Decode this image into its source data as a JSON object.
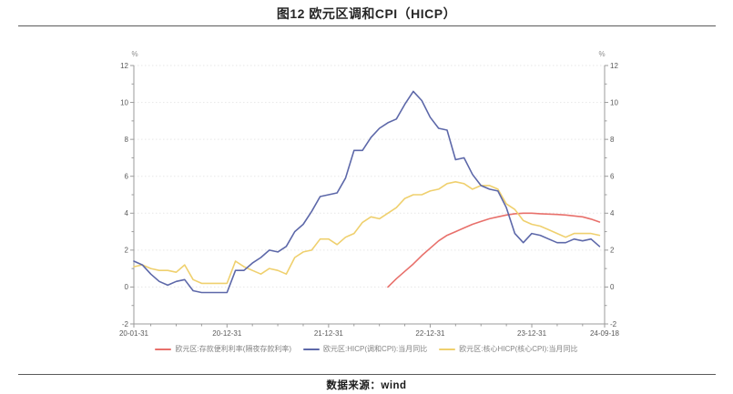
{
  "page": {
    "title": "图12 欧元区调和CPI（HICP）",
    "source": "数据来源：wind"
  },
  "chart_data": {
    "type": "line",
    "title": "图12 欧元区调和CPI（HICP）",
    "unit_label": "%",
    "x_start": "2020-01-31",
    "x_end": "2024-09-18",
    "x_tick_labels": [
      "20-01-31",
      "20-12-31",
      "21-12-31",
      "22-12-31",
      "23-12-31",
      "24-09-18"
    ],
    "x_tick_months": [
      0,
      11,
      23,
      35,
      47,
      55.6
    ],
    "x_minor_tick_months": [
      2,
      5,
      8,
      14,
      17,
      20,
      26,
      29,
      32,
      38,
      41,
      44,
      50,
      53
    ],
    "x_total_months": 55.6,
    "ylim": [
      -2,
      12
    ],
    "y_ticks": [
      -2,
      0,
      2,
      4,
      6,
      8,
      10,
      12
    ],
    "y_minor_ticks": [
      -1,
      1,
      3,
      5,
      7,
      9,
      11
    ],
    "grid_values": [
      0,
      2,
      4,
      6,
      8,
      10,
      12
    ],
    "grid_style": "dotted",
    "legend_position": "bottom",
    "x_frequency": "monthly",
    "draw_order": [
      0,
      2,
      1
    ],
    "series": [
      {
        "name": "欧元区:存款便利利率(隔夜存款利率)",
        "color": "#E8706B",
        "values": [
          null,
          null,
          null,
          null,
          null,
          null,
          null,
          null,
          null,
          null,
          null,
          null,
          null,
          null,
          null,
          null,
          null,
          null,
          null,
          null,
          null,
          null,
          null,
          null,
          null,
          null,
          null,
          null,
          null,
          null,
          0,
          0.45,
          0.85,
          1.25,
          1.7,
          2.1,
          2.5,
          2.8,
          3.0,
          3.2,
          3.4,
          3.55,
          3.7,
          3.8,
          3.9,
          3.97,
          4.0,
          4.0,
          3.97,
          3.95,
          3.93,
          3.9,
          3.85,
          3.8,
          3.68,
          3.52
        ]
      },
      {
        "name": "欧元区:HICP(调和CPI):当月同比",
        "color": "#5D68A9",
        "values": [
          1.4,
          1.2,
          0.7,
          0.3,
          0.1,
          0.3,
          0.4,
          -0.2,
          -0.3,
          -0.3,
          -0.3,
          -0.3,
          0.9,
          0.9,
          1.3,
          1.6,
          2.0,
          1.9,
          2.2,
          3.0,
          3.4,
          4.1,
          4.9,
          5.0,
          5.1,
          5.9,
          7.4,
          7.4,
          8.1,
          8.6,
          8.9,
          9.1,
          9.9,
          10.6,
          10.1,
          9.2,
          8.6,
          8.5,
          6.9,
          7.0,
          6.1,
          5.5,
          5.3,
          5.2,
          4.3,
          2.9,
          2.4,
          2.9,
          2.8,
          2.6,
          2.4,
          2.4,
          2.6,
          2.5,
          2.6,
          2.2
        ]
      },
      {
        "name": "欧元区:核心HICP(核心CPI):当月同比",
        "color": "#EFD06E",
        "values": [
          1.1,
          1.2,
          1.0,
          0.9,
          0.9,
          0.8,
          1.2,
          0.4,
          0.2,
          0.2,
          0.2,
          0.2,
          1.4,
          1.1,
          0.9,
          0.7,
          1.0,
          0.9,
          0.7,
          1.6,
          1.9,
          2.0,
          2.6,
          2.6,
          2.3,
          2.7,
          2.9,
          3.5,
          3.8,
          3.7,
          4.0,
          4.3,
          4.8,
          5.0,
          5.0,
          5.2,
          5.3,
          5.6,
          5.7,
          5.6,
          5.3,
          5.5,
          5.5,
          5.3,
          4.5,
          4.2,
          3.6,
          3.4,
          3.3,
          3.1,
          2.9,
          2.7,
          2.9,
          2.9,
          2.9,
          2.8
        ]
      }
    ]
  }
}
